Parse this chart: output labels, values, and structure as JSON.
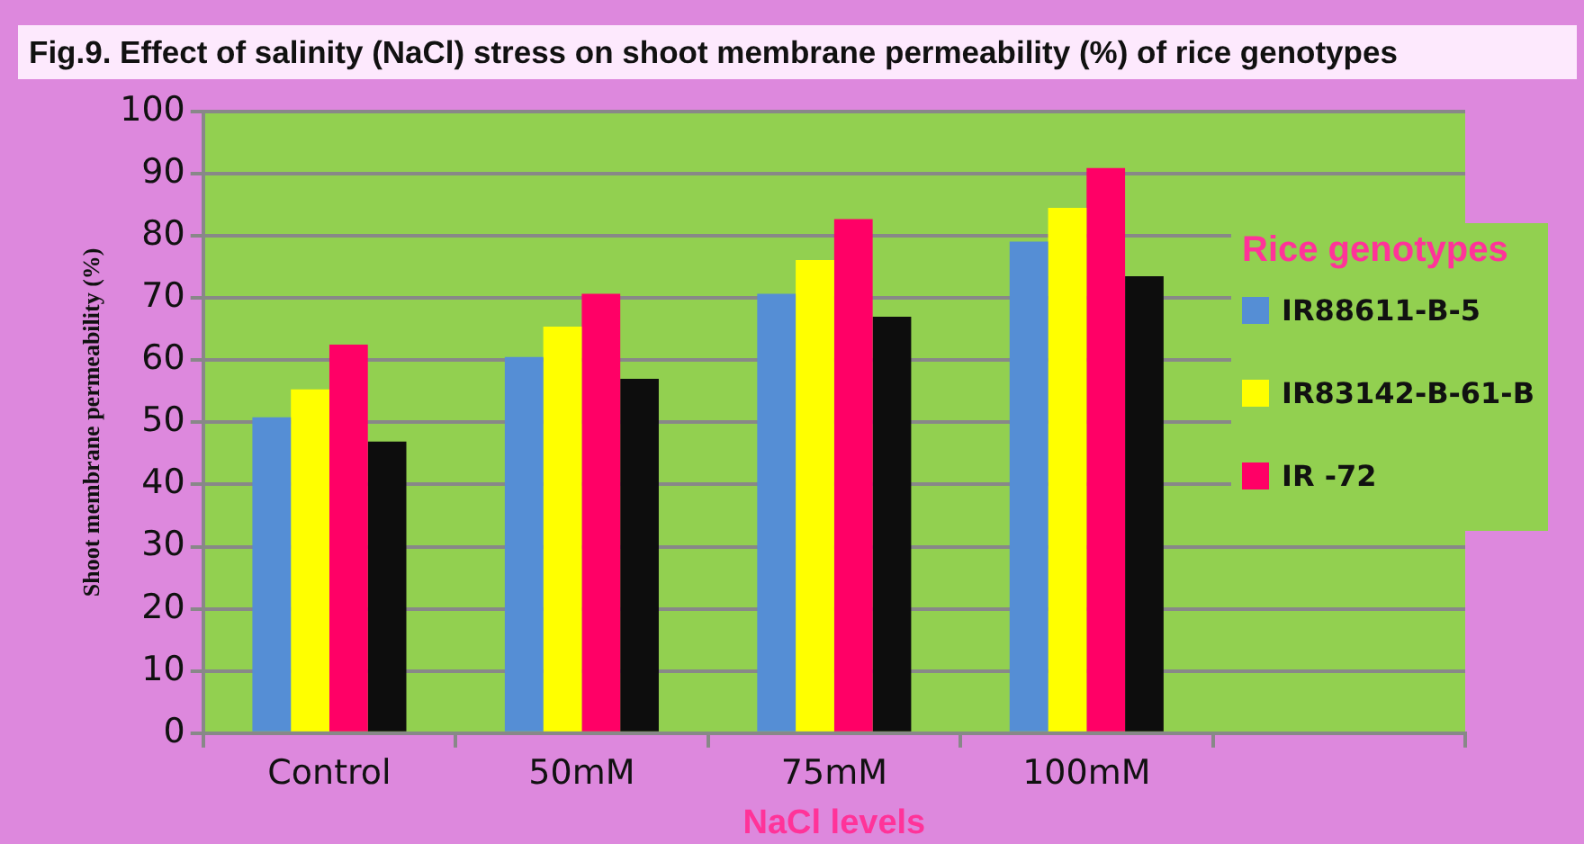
{
  "chart_data": {
    "type": "bar",
    "title": "Fig.9. Effect of salinity (NaCl) stress on shoot membrane permeability (%) of rice genotypes",
    "xlabel": "NaCl levels",
    "ylabel": "Shoot membrane permeability (%)",
    "legend_title": "Rice genotypes",
    "categories": [
      "Control",
      "50mM",
      "75mM",
      "100mM",
      null
    ],
    "series": [
      {
        "name": "IR88611-B-5",
        "color": "#558ed5",
        "values": [
          50.8,
          60.5,
          70.7,
          79.1,
          null
        ]
      },
      {
        "name": "IR83142-B-61-B",
        "color": "#ffff00",
        "values": [
          55.3,
          65.4,
          76.1,
          84.5,
          null
        ]
      },
      {
        "name": "IR -72",
        "color": "#ff0066",
        "values": [
          62.5,
          70.7,
          82.7,
          90.9,
          null
        ]
      },
      {
        "color": "#0d0d0d",
        "values": [
          46.9,
          57.0,
          67.0,
          73.5,
          null
        ]
      }
    ],
    "ylim": [
      0,
      100
    ],
    "yticks": [
      0,
      10,
      20,
      30,
      40,
      50,
      60,
      70,
      80,
      90,
      100
    ],
    "grid": "y",
    "legend": "right"
  }
}
